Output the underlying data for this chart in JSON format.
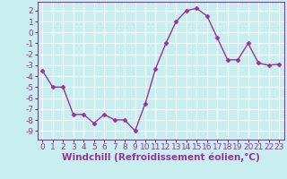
{
  "x": [
    0,
    1,
    2,
    3,
    4,
    5,
    6,
    7,
    8,
    9,
    10,
    11,
    12,
    13,
    14,
    15,
    16,
    17,
    18,
    19,
    20,
    21,
    22,
    23
  ],
  "y": [
    -3.5,
    -5.0,
    -5.0,
    -7.5,
    -7.5,
    -8.3,
    -7.5,
    -8.0,
    -8.0,
    -9.0,
    -6.5,
    -3.3,
    -1.0,
    1.0,
    2.0,
    2.2,
    1.5,
    -0.5,
    -2.5,
    -2.5,
    -1.0,
    -2.8,
    -3.0,
    -2.9
  ],
  "line_color": "#993399",
  "marker": "D",
  "marker_size": 2.5,
  "bg_color": "#c8eef0",
  "grid_color": "#ffffff",
  "xlabel": "Windchill (Refroidissement éolien,°C)",
  "xlim": [
    -0.5,
    23.5
  ],
  "ylim": [
    -9.8,
    2.8
  ],
  "yticks": [
    2,
    1,
    0,
    -1,
    -2,
    -3,
    -4,
    -5,
    -6,
    -7,
    -8,
    -9
  ],
  "xticks": [
    0,
    1,
    2,
    3,
    4,
    5,
    6,
    7,
    8,
    9,
    10,
    11,
    12,
    13,
    14,
    15,
    16,
    17,
    18,
    19,
    20,
    21,
    22,
    23
  ],
  "tick_label_color": "#993399",
  "tick_label_fontsize": 6.5,
  "xlabel_fontsize": 7.5,
  "line_width": 1.0,
  "spine_color": "#993399"
}
